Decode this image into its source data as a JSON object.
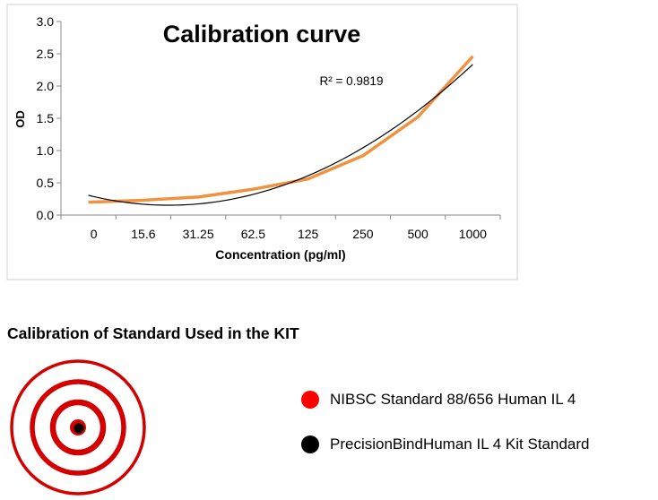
{
  "chart_data": {
    "type": "line",
    "title": "Calibration curve",
    "xlabel": "Concentration (pg/ml)",
    "ylabel": "OD",
    "categories": [
      "0",
      "15.6",
      "31.25",
      "62.5",
      "125",
      "250",
      "500",
      "1000"
    ],
    "series": [
      {
        "values": [
          0.2,
          0.23,
          0.28,
          0.4,
          0.56,
          0.92,
          1.52,
          2.46
        ],
        "color": "#f0923e"
      }
    ],
    "trendline": {
      "type": "polynomial",
      "order": 2,
      "color": "#000000",
      "label": "R² = 0.9819"
    },
    "ylim": [
      0,
      3
    ],
    "yticks": [
      "0.0",
      "0.5",
      "1.0",
      "1.5",
      "2.0",
      "2.5",
      "3.0"
    ],
    "grid": false,
    "legend": "none"
  },
  "section": {
    "title": "Calibration of Standard Used in the KIT",
    "legend": [
      {
        "label": "NIBSC Standard 88/656 Human IL 4",
        "color": "#ff0000"
      },
      {
        "label": "PrecisionBindHuman IL 4 Kit Standard",
        "color": "#000000"
      }
    ],
    "target_color": "#d40000"
  }
}
